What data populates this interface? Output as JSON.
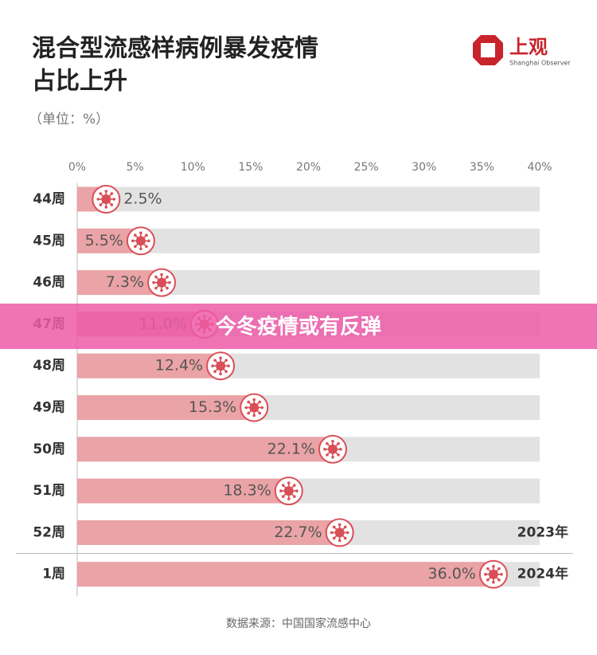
{
  "chart_data": {
    "type": "hbar",
    "title": [
      "混合型流感样病例暴发疫情",
      "占比上升"
    ],
    "subtitle": "（单位：%）",
    "source": "数据来源：中国国家流感中心",
    "categories": [
      "44周",
      "45周",
      "46周",
      "47周",
      "48周",
      "49周",
      "50周",
      "51周",
      "52周",
      "1周"
    ],
    "values": [
      2.5,
      5.5,
      7.3,
      11.0,
      12.4,
      15.3,
      22.1,
      18.3,
      22.7,
      36.0
    ],
    "value_labels": [
      "2.5%",
      "5.5%",
      "7.3%",
      "11.0%",
      "12.4%",
      "15.3%",
      "22.1%",
      "18.3%",
      "22.7%",
      "36.0%"
    ],
    "color": "#eaa3a6",
    "xlim": [
      0,
      40
    ],
    "xticks": [
      {
        "value": 0,
        "label": "0%"
      },
      {
        "value": 5,
        "label": "5%"
      },
      {
        "value": 10,
        "label": "10%"
      },
      {
        "value": 15,
        "label": "15%"
      },
      {
        "value": 20,
        "label": "20%"
      },
      {
        "value": 25,
        "label": "25%"
      },
      {
        "value": 30,
        "label": "30%"
      },
      {
        "value": 35,
        "label": "35%"
      },
      {
        "value": 40,
        "label": "40%"
      }
    ],
    "grid": false,
    "annotations": [
      "2023年",
      "2024年"
    ]
  },
  "logo": {
    "name": "上观",
    "subtitle": "Shanghai Observer"
  },
  "banner": "今冬疫情或有反弹"
}
